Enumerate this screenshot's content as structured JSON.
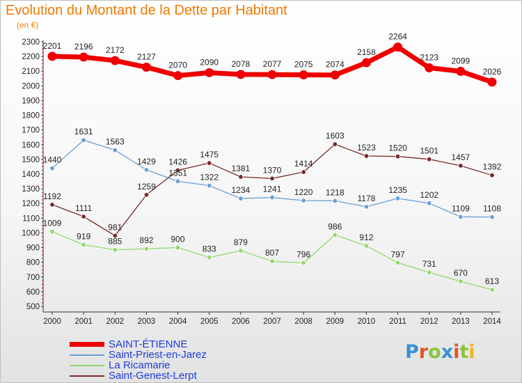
{
  "title": "Evolution du Montant de la Dette par Habitant",
  "unit_label": "(en €)",
  "logo": {
    "text": "Proxiti",
    "letter_colors": [
      "#3a8fd6",
      "#e2541f",
      "#8bc43a",
      "#3a8fd6",
      "#e2541f",
      "#8bc43a",
      "#f2b21b"
    ]
  },
  "chart_data": {
    "type": "line",
    "x": [
      2000,
      2001,
      2002,
      2003,
      2004,
      2005,
      2006,
      2007,
      2008,
      2009,
      2010,
      2011,
      2012,
      2013,
      2014
    ],
    "ylim": [
      500,
      2300
    ],
    "y_ticks": [
      500,
      600,
      700,
      800,
      900,
      1000,
      1100,
      1200,
      1300,
      1400,
      1500,
      1600,
      1700,
      1800,
      1900,
      2000,
      2100,
      2200,
      2300
    ],
    "grid": false,
    "legend_position": "bottom-left",
    "series": [
      {
        "name": "SAINT-ÉTIENNE",
        "color": "#ee0000",
        "emphasis": true,
        "values": [
          2201,
          2196,
          2172,
          2127,
          2070,
          2090,
          2078,
          2077,
          2075,
          2074,
          2158,
          2264,
          2123,
          2099,
          2026
        ]
      },
      {
        "name": "Saint-Priest-en-Jarez",
        "color": "#6a9fd4",
        "emphasis": false,
        "values": [
          1440,
          1631,
          1563,
          1429,
          1351,
          1322,
          1234,
          1241,
          1220,
          1218,
          1178,
          1235,
          1202,
          1109,
          1108
        ]
      },
      {
        "name": "La Ricamarie",
        "color": "#93d86a",
        "emphasis": false,
        "values": [
          1009,
          919,
          885,
          892,
          900,
          833,
          879,
          807,
          796,
          986,
          912,
          797,
          731,
          670,
          613
        ]
      },
      {
        "name": "Saint-Genest-Lerpt",
        "color": "#7a2a2a",
        "emphasis": false,
        "values": [
          1192,
          1111,
          981,
          1259,
          1426,
          1475,
          1381,
          1370,
          1414,
          1603,
          1523,
          1520,
          1501,
          1457,
          1392
        ]
      }
    ]
  }
}
